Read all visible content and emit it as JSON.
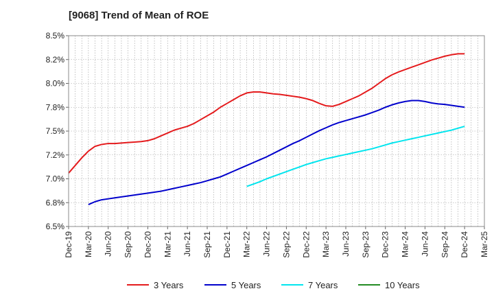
{
  "chart_data": {
    "type": "line",
    "title": "[9068]  Trend of Mean of ROE",
    "xlabel": "",
    "ylabel": "",
    "ylim": [
      6.5,
      8.5
    ],
    "x_tick_labels": [
      "Dec-19",
      "Mar-20",
      "Jun-20",
      "Sep-20",
      "Dec-20",
      "Mar-21",
      "Jun-21",
      "Sep-21",
      "Dec-21",
      "Mar-22",
      "Jun-22",
      "Sep-22",
      "Dec-22",
      "Mar-23",
      "Jun-23",
      "Sep-23",
      "Dec-23",
      "Mar-24",
      "Jun-24",
      "Sep-24",
      "Dec-24",
      "Mar-25"
    ],
    "y_ticks": [
      6.5,
      6.75,
      7.0,
      7.25,
      7.5,
      7.75,
      8.0,
      8.25,
      8.5
    ],
    "y_tick_labels": [
      "6.5%",
      "6.8%",
      "7.0%",
      "7.2%",
      "7.5%",
      "7.8%",
      "8.0%",
      "8.2%",
      "8.5%"
    ],
    "grid": true,
    "legend_position": "bottom",
    "series": [
      {
        "name": "3 Years",
        "color": "#e41a1c",
        "x": [
          "Dec-19",
          "Jan-20",
          "Feb-20",
          "Mar-20",
          "Apr-20",
          "May-20",
          "Jun-20",
          "Jul-20",
          "Aug-20",
          "Sep-20",
          "Oct-20",
          "Nov-20",
          "Dec-20",
          "Jan-21",
          "Feb-21",
          "Mar-21",
          "Apr-21",
          "May-21",
          "Jun-21",
          "Jul-21",
          "Aug-21",
          "Sep-21",
          "Oct-21",
          "Nov-21",
          "Dec-21",
          "Jan-22",
          "Feb-22",
          "Mar-22",
          "Apr-22",
          "May-22",
          "Jun-22",
          "Jul-22",
          "Aug-22",
          "Sep-22",
          "Oct-22",
          "Nov-22",
          "Dec-22",
          "Jan-23",
          "Feb-23",
          "Mar-23",
          "Apr-23",
          "May-23",
          "Jun-23",
          "Jul-23",
          "Aug-23",
          "Sep-23",
          "Oct-23",
          "Nov-23",
          "Dec-23",
          "Jan-24",
          "Feb-24",
          "Mar-24",
          "Apr-24",
          "May-24",
          "Jun-24",
          "Jul-24",
          "Aug-24",
          "Sep-24",
          "Oct-24",
          "Nov-24",
          "Dec-24"
        ],
        "values": [
          7.06,
          7.14,
          7.22,
          7.29,
          7.34,
          7.36,
          7.37,
          7.37,
          7.375,
          7.38,
          7.385,
          7.39,
          7.4,
          7.42,
          7.45,
          7.48,
          7.51,
          7.53,
          7.55,
          7.58,
          7.62,
          7.66,
          7.7,
          7.75,
          7.79,
          7.83,
          7.87,
          7.9,
          7.91,
          7.91,
          7.9,
          7.89,
          7.885,
          7.875,
          7.865,
          7.855,
          7.84,
          7.82,
          7.79,
          7.765,
          7.76,
          7.78,
          7.81,
          7.84,
          7.87,
          7.91,
          7.95,
          8.0,
          8.05,
          8.09,
          8.12,
          8.145,
          8.17,
          8.195,
          8.22,
          8.245,
          8.265,
          8.285,
          8.3,
          8.31,
          8.31
        ]
      },
      {
        "name": "5 Years",
        "color": "#0000cc",
        "x": [
          "Mar-20",
          "Apr-20",
          "May-20",
          "Jun-20",
          "Jul-20",
          "Aug-20",
          "Sep-20",
          "Oct-20",
          "Nov-20",
          "Dec-20",
          "Jan-21",
          "Feb-21",
          "Mar-21",
          "Apr-21",
          "May-21",
          "Jun-21",
          "Jul-21",
          "Aug-21",
          "Sep-21",
          "Oct-21",
          "Nov-21",
          "Dec-21",
          "Jan-22",
          "Feb-22",
          "Mar-22",
          "Apr-22",
          "May-22",
          "Jun-22",
          "Jul-22",
          "Aug-22",
          "Sep-22",
          "Oct-22",
          "Nov-22",
          "Dec-22",
          "Jan-23",
          "Feb-23",
          "Mar-23",
          "Apr-23",
          "May-23",
          "Jun-23",
          "Jul-23",
          "Aug-23",
          "Sep-23",
          "Oct-23",
          "Nov-23",
          "Dec-23",
          "Jan-24",
          "Feb-24",
          "Mar-24",
          "Apr-24",
          "May-24",
          "Jun-24",
          "Jul-24",
          "Aug-24",
          "Sep-24",
          "Oct-24",
          "Nov-24",
          "Dec-24"
        ],
        "values": [
          6.73,
          6.76,
          6.78,
          6.79,
          6.8,
          6.81,
          6.82,
          6.83,
          6.84,
          6.85,
          6.86,
          6.87,
          6.885,
          6.9,
          6.915,
          6.93,
          6.945,
          6.96,
          6.98,
          7.0,
          7.02,
          7.05,
          7.08,
          7.11,
          7.14,
          7.17,
          7.2,
          7.23,
          7.265,
          7.3,
          7.335,
          7.37,
          7.4,
          7.435,
          7.47,
          7.505,
          7.535,
          7.565,
          7.59,
          7.61,
          7.63,
          7.65,
          7.67,
          7.695,
          7.72,
          7.75,
          7.775,
          7.795,
          7.81,
          7.82,
          7.82,
          7.81,
          7.795,
          7.785,
          7.78,
          7.77,
          7.76,
          7.75
        ]
      },
      {
        "name": "7 Years",
        "color": "#00e5ee",
        "x": [
          "Mar-22",
          "Apr-22",
          "May-22",
          "Jun-22",
          "Jul-22",
          "Aug-22",
          "Sep-22",
          "Oct-22",
          "Nov-22",
          "Dec-22",
          "Jan-23",
          "Feb-23",
          "Mar-23",
          "Apr-23",
          "May-23",
          "Jun-23",
          "Jul-23",
          "Aug-23",
          "Sep-23",
          "Oct-23",
          "Nov-23",
          "Dec-23",
          "Jan-24",
          "Feb-24",
          "Mar-24",
          "Apr-24",
          "May-24",
          "Jun-24",
          "Jul-24",
          "Aug-24",
          "Sep-24",
          "Oct-24",
          "Nov-24",
          "Dec-24"
        ],
        "values": [
          6.92,
          6.945,
          6.97,
          7.0,
          7.025,
          7.05,
          7.075,
          7.1,
          7.125,
          7.15,
          7.17,
          7.19,
          7.21,
          7.225,
          7.24,
          7.255,
          7.27,
          7.285,
          7.3,
          7.315,
          7.335,
          7.355,
          7.375,
          7.39,
          7.405,
          7.42,
          7.435,
          7.45,
          7.465,
          7.48,
          7.495,
          7.51,
          7.53,
          7.55
        ]
      },
      {
        "name": "10 Years",
        "color": "#228b22",
        "x": [],
        "values": []
      }
    ]
  }
}
